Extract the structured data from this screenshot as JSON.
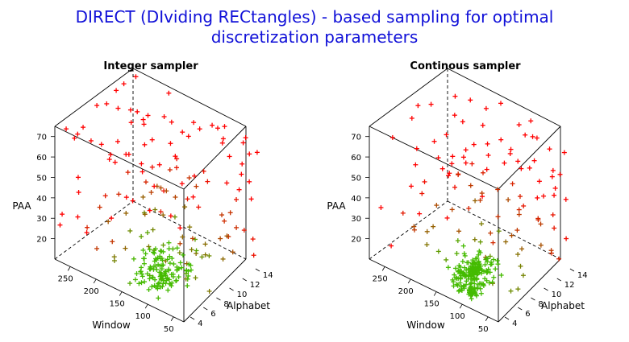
{
  "figure": {
    "title_line1": "DIRECT (DIviding RECtangles) - based sampling for optimal",
    "title_line2": "discretization parameters",
    "colors": {
      "title": "#1010d8",
      "sample_far": "#ff0000",
      "sample_mid": "#8a6a00",
      "sample_good": "#44bb00"
    }
  },
  "chart_data": [
    {
      "type": "scatter",
      "subtitle": "Integer sampler",
      "xlabel": "Window",
      "ylabel": "Alphabet",
      "zlabel": "PAA",
      "x_ticks": [
        "250",
        "200",
        "150",
        "100",
        "50"
      ],
      "y_ticks": [
        "4",
        "6",
        "8",
        "10",
        "12",
        "14"
      ],
      "z_ticks": [
        "20",
        "30",
        "40",
        "50",
        "60",
        "70"
      ],
      "xlim": [
        30,
        280
      ],
      "ylim": [
        3,
        15
      ],
      "zlim": [
        10,
        75
      ],
      "marker": "plus",
      "grid": false,
      "cluster": {
        "window": [
          80,
          150
        ],
        "alphabet": [
          4,
          9
        ],
        "paa": [
          10,
          25
        ]
      }
    },
    {
      "type": "scatter",
      "subtitle": "Continous sampler",
      "xlabel": "Window",
      "ylabel": "Alphabet",
      "zlabel": "PAA",
      "x_ticks": [
        "250",
        "200",
        "150",
        "100",
        "50"
      ],
      "y_ticks": [
        "4",
        "6",
        "8",
        "10",
        "12",
        "14"
      ],
      "z_ticks": [
        "20",
        "30",
        "40",
        "50",
        "60",
        "70"
      ],
      "xlim": [
        30,
        280
      ],
      "ylim": [
        3,
        15
      ],
      "zlim": [
        10,
        75
      ],
      "marker": "plus",
      "grid": false,
      "cluster": {
        "window": [
          90,
          140
        ],
        "alphabet": [
          4,
          8
        ],
        "paa": [
          10,
          22
        ]
      }
    }
  ]
}
